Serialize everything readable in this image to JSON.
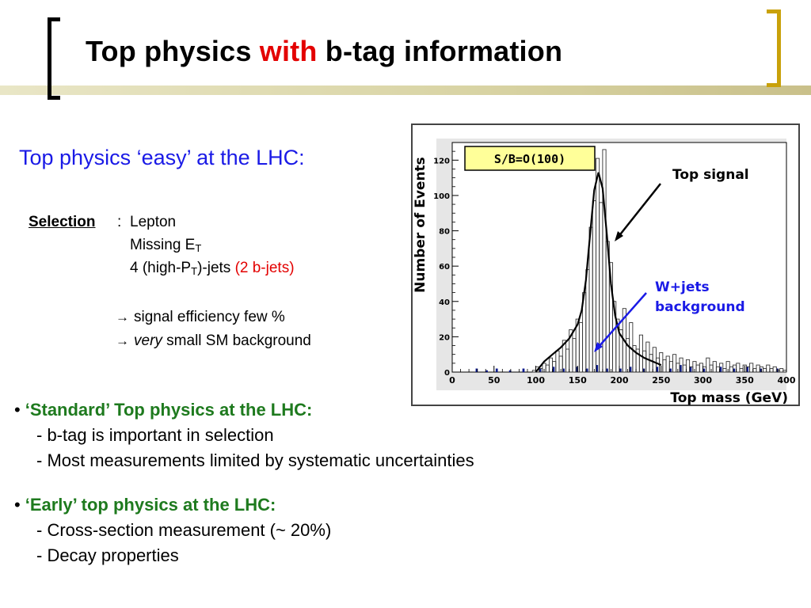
{
  "slide": {
    "title_part1": "Top physics ",
    "title_highlight": "with",
    "title_part2": " b-tag information"
  },
  "subheading": "Top physics ‘easy’ at the LHC:",
  "selection": {
    "label": "Selection",
    "colon": ":",
    "lepton": "Lepton",
    "missing_prefix": "Missing E",
    "missing_sub": "T",
    "jets_prefix": "4 (high-P",
    "jets_sub": "T",
    "jets_suffix": ")-jets ",
    "jets_note": "(2 b-jets)"
  },
  "consequences": {
    "arrow": "→",
    "line1": "signal efficiency few %",
    "line2_italic": "very",
    "line2_rest": " small SM background"
  },
  "bullets": [
    {
      "heading": "‘Standard’ Top physics at the LHC:",
      "items": [
        "- b-tag is important in selection",
        "- Most measurements limited by systematic uncertainties"
      ]
    },
    {
      "heading": "‘Early’ top physics at the LHC:",
      "items": [
        "- Cross-section measurement (~ 20%)",
        "- Decay properties"
      ]
    }
  ],
  "bullet_symbol": "•",
  "colors": {
    "title_highlight": "#e30000",
    "subheading": "#1a1ae6",
    "bullet_heading": "#1e7a1e",
    "bracket_right": "#c9a10a",
    "annotation_wjets": "#1a1ae6",
    "sb_box": "#ffff99",
    "background_bars": "#0a1a8c"
  },
  "chart_data": {
    "type": "bar",
    "title": "",
    "xlabel": "Top mass (GeV)",
    "ylabel": "Number of Events",
    "xlim": [
      0,
      400
    ],
    "ylim": [
      0,
      130
    ],
    "xticks": [
      0,
      50,
      100,
      150,
      200,
      250,
      300,
      350,
      400
    ],
    "yticks": [
      0,
      20,
      40,
      60,
      80,
      100,
      120
    ],
    "annotations": {
      "sb": "S/B=O(100)",
      "signal": "Top signal",
      "wjets_line1": "W+jets",
      "wjets_line2": "background"
    },
    "bin_width": 4,
    "signal_histogram": [
      [
        96,
        1
      ],
      [
        100,
        3
      ],
      [
        104,
        2
      ],
      [
        108,
        5
      ],
      [
        112,
        4
      ],
      [
        116,
        8
      ],
      [
        120,
        6
      ],
      [
        124,
        12
      ],
      [
        128,
        9
      ],
      [
        132,
        18
      ],
      [
        136,
        13
      ],
      [
        140,
        24
      ],
      [
        144,
        19
      ],
      [
        148,
        30
      ],
      [
        152,
        28
      ],
      [
        156,
        45
      ],
      [
        160,
        58
      ],
      [
        164,
        82
      ],
      [
        168,
        97
      ],
      [
        172,
        121
      ],
      [
        176,
        96
      ],
      [
        180,
        126
      ],
      [
        184,
        74
      ],
      [
        188,
        62
      ],
      [
        192,
        40
      ],
      [
        196,
        30
      ],
      [
        200,
        24
      ],
      [
        204,
        36
      ],
      [
        208,
        19
      ],
      [
        212,
        28
      ],
      [
        216,
        15
      ],
      [
        220,
        13
      ],
      [
        224,
        21
      ],
      [
        228,
        12
      ],
      [
        232,
        17
      ],
      [
        236,
        10
      ],
      [
        240,
        14
      ],
      [
        244,
        8
      ],
      [
        248,
        11
      ],
      [
        252,
        7
      ],
      [
        256,
        9
      ],
      [
        260,
        6
      ],
      [
        264,
        10
      ],
      [
        268,
        5
      ],
      [
        272,
        8
      ],
      [
        276,
        4
      ],
      [
        280,
        7
      ],
      [
        284,
        3
      ],
      [
        288,
        6
      ],
      [
        292,
        4
      ],
      [
        296,
        5
      ],
      [
        300,
        3
      ],
      [
        304,
        8
      ],
      [
        308,
        4
      ],
      [
        312,
        6
      ],
      [
        316,
        3
      ],
      [
        320,
        5
      ],
      [
        324,
        2
      ],
      [
        328,
        6
      ],
      [
        332,
        3
      ],
      [
        336,
        4
      ],
      [
        340,
        5
      ],
      [
        344,
        2
      ],
      [
        348,
        4
      ],
      [
        352,
        3
      ],
      [
        356,
        5
      ],
      [
        360,
        2
      ],
      [
        364,
        4
      ],
      [
        368,
        3
      ],
      [
        372,
        2
      ],
      [
        376,
        4
      ],
      [
        380,
        2
      ],
      [
        384,
        3
      ],
      [
        388,
        1
      ],
      [
        392,
        2
      ],
      [
        396,
        1
      ]
    ],
    "fit_curve": [
      [
        100,
        0
      ],
      [
        110,
        6
      ],
      [
        120,
        10
      ],
      [
        130,
        14
      ],
      [
        140,
        19
      ],
      [
        150,
        27
      ],
      [
        155,
        35
      ],
      [
        160,
        52
      ],
      [
        165,
        78
      ],
      [
        170,
        103
      ],
      [
        175,
        113
      ],
      [
        180,
        104
      ],
      [
        185,
        78
      ],
      [
        190,
        50
      ],
      [
        195,
        32
      ],
      [
        200,
        22
      ],
      [
        210,
        15
      ],
      [
        220,
        11
      ],
      [
        230,
        8
      ],
      [
        240,
        6
      ],
      [
        250,
        4
      ]
    ],
    "background_histogram": [
      [
        0,
        0
      ],
      [
        28,
        2
      ],
      [
        40,
        1
      ],
      [
        52,
        2
      ],
      [
        68,
        1
      ],
      [
        84,
        2
      ],
      [
        104,
        2
      ],
      [
        120,
        3
      ],
      [
        132,
        2
      ],
      [
        148,
        3
      ],
      [
        160,
        2
      ],
      [
        172,
        4
      ],
      [
        184,
        2
      ],
      [
        200,
        2
      ],
      [
        212,
        3
      ],
      [
        228,
        2
      ],
      [
        244,
        3
      ],
      [
        260,
        2
      ],
      [
        272,
        4
      ],
      [
        284,
        3
      ],
      [
        300,
        2
      ],
      [
        320,
        3
      ],
      [
        336,
        2
      ],
      [
        352,
        3
      ],
      [
        368,
        2
      ],
      [
        388,
        2
      ]
    ]
  }
}
